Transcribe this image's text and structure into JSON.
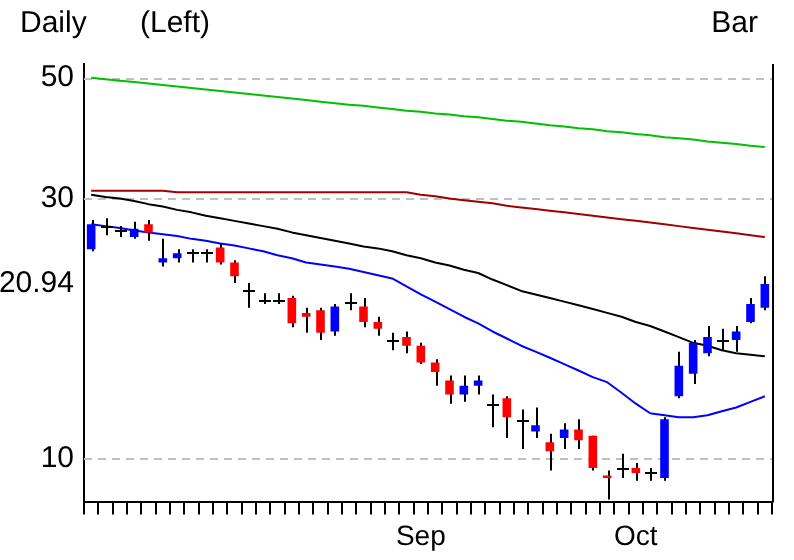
{
  "chart_data": {
    "type": "candlestick",
    "title": "Daily",
    "annotations": [
      "(Left)",
      "Bar"
    ],
    "categories": [
      null,
      null,
      null,
      null,
      null,
      null,
      null,
      null,
      null,
      null,
      null,
      null,
      null,
      null,
      null,
      null,
      null,
      null,
      null,
      null,
      null,
      null,
      null,
      "Sep",
      null,
      null,
      null,
      null,
      null,
      null,
      null,
      null,
      null,
      null,
      null,
      null,
      null,
      null,
      "Oct",
      null,
      null,
      null,
      null,
      null,
      null,
      null,
      null,
      null
    ],
    "ohlc": [
      [
        24.2,
        27.4,
        24.0,
        26.9
      ],
      [
        26.7,
        27.6,
        25.7,
        26.7
      ],
      [
        26.2,
        26.7,
        25.5,
        26.2
      ],
      [
        25.5,
        27.2,
        25.3,
        26.4
      ],
      [
        26.9,
        27.4,
        25.1,
        26.0
      ],
      [
        22.9,
        25.3,
        22.5,
        23.3
      ],
      [
        23.3,
        24.2,
        22.9,
        23.8
      ],
      [
        24.0,
        24.2,
        22.9,
        24.0
      ],
      [
        24.0,
        24.2,
        22.9,
        24.0
      ],
      [
        24.4,
        24.8,
        22.7,
        22.9
      ],
      [
        22.9,
        23.1,
        21.0,
        21.6
      ],
      [
        20.3,
        21.0,
        18.9,
        20.3
      ],
      [
        19.5,
        20.1,
        19.2,
        19.5
      ],
      [
        19.5,
        20.1,
        19.2,
        19.5
      ],
      [
        19.7,
        19.9,
        17.4,
        17.7
      ],
      [
        18.5,
        18.9,
        17.0,
        18.2
      ],
      [
        18.7,
        18.9,
        16.5,
        17.0
      ],
      [
        17.1,
        19.2,
        16.8,
        19.0
      ],
      [
        19.4,
        20.1,
        18.7,
        19.4
      ],
      [
        19.0,
        19.7,
        17.4,
        17.8
      ],
      [
        17.8,
        18.2,
        16.8,
        17.3
      ],
      [
        16.5,
        17.0,
        15.8,
        16.5
      ],
      [
        16.7,
        17.1,
        15.6,
        16.1
      ],
      [
        16.1,
        16.3,
        14.9,
        15.0
      ],
      [
        15.0,
        15.2,
        13.6,
        14.4
      ],
      [
        13.9,
        14.2,
        12.6,
        13.1
      ],
      [
        13.1,
        14.2,
        12.7,
        13.6
      ],
      [
        13.6,
        14.2,
        13.1,
        13.9
      ],
      [
        12.6,
        13.1,
        11.4,
        12.6
      ],
      [
        12.9,
        13.0,
        10.9,
        11.9
      ],
      [
        11.8,
        12.3,
        10.4,
        11.8
      ],
      [
        11.2,
        12.4,
        10.9,
        11.5
      ],
      [
        10.7,
        11.1,
        9.5,
        10.3
      ],
      [
        10.9,
        11.6,
        10.4,
        11.3
      ],
      [
        11.3,
        11.8,
        10.4,
        10.8
      ],
      [
        11.0,
        11.0,
        9.5,
        9.6
      ],
      [
        9.3,
        9.5,
        8.4,
        9.2
      ],
      [
        9.6,
        10.2,
        9.2,
        9.6
      ],
      [
        9.6,
        9.8,
        9.1,
        9.4
      ],
      [
        9.4,
        9.6,
        9.1,
        9.4
      ],
      [
        9.2,
        11.9,
        9.1,
        11.8
      ],
      [
        13.0,
        15.7,
        12.9,
        14.8
      ],
      [
        14.3,
        16.5,
        13.7,
        16.3
      ],
      [
        15.6,
        17.5,
        15.4,
        16.7
      ],
      [
        16.5,
        17.3,
        15.8,
        16.5
      ],
      [
        16.5,
        17.5,
        15.7,
        17.1
      ],
      [
        17.8,
        19.7,
        17.7,
        19.2
      ],
      [
        18.9,
        21.6,
        18.7,
        20.9
      ]
    ],
    "colors": [
      "#0000ff",
      "#000000",
      "#000000",
      "#0000ff",
      "#ff0000",
      "#0000ff",
      "#0000ff",
      "#000000",
      "#000000",
      "#ff0000",
      "#ff0000",
      "#000000",
      "#000000",
      "#000000",
      "#ff0000",
      "#ff0000",
      "#ff0000",
      "#0000ff",
      "#000000",
      "#ff0000",
      "#ff0000",
      "#000000",
      "#ff0000",
      "#ff0000",
      "#ff0000",
      "#ff0000",
      "#0000ff",
      "#0000ff",
      "#000000",
      "#ff0000",
      "#000000",
      "#0000ff",
      "#ff0000",
      "#0000ff",
      "#ff0000",
      "#ff0000",
      "#ff0000",
      "#000000",
      "#ff0000",
      "#000000",
      "#0000ff",
      "#0000ff",
      "#0000ff",
      "#0000ff",
      "#000000",
      "#0000ff",
      "#0000ff",
      "#0000ff"
    ],
    "series": [
      {
        "type": "line",
        "color": "#00c000",
        "values": [
          50,
          49.7,
          49.4,
          49.1,
          48.8,
          48.5,
          48.2,
          47.9,
          47.6,
          47.3,
          47.0,
          46.7,
          46.4,
          46.1,
          45.8,
          45.5,
          45.2,
          44.9,
          44.6,
          44.4,
          44.1,
          43.8,
          43.5,
          43.3,
          43.0,
          42.8,
          42.5,
          42.3,
          42.0,
          41.7,
          41.5,
          41.2,
          40.9,
          40.7,
          40.4,
          40.2,
          39.9,
          39.7,
          39.4,
          39.2,
          38.9,
          38.7,
          38.5,
          38.2,
          38.0,
          37.8,
          37.5,
          37.3
        ]
      },
      {
        "type": "line",
        "color": "#a00000",
        "values": [
          31.0,
          31.0,
          31.0,
          31.0,
          31.0,
          31.0,
          30.8,
          30.8,
          30.8,
          30.8,
          30.8,
          30.8,
          30.8,
          30.8,
          30.8,
          30.8,
          30.8,
          30.8,
          30.8,
          30.8,
          30.8,
          30.8,
          30.8,
          30.5,
          30.3,
          30.0,
          29.8,
          29.6,
          29.4,
          29.1,
          28.9,
          28.7,
          28.5,
          28.3,
          28.1,
          27.9,
          27.7,
          27.5,
          27.3,
          27.1,
          26.9,
          26.7,
          26.5,
          26.3,
          26.1,
          25.9,
          25.7,
          25.5
        ]
      },
      {
        "type": "line",
        "color": "#000000",
        "values": [
          30.5,
          30.2,
          30.0,
          29.7,
          29.3,
          29.0,
          28.6,
          28.3,
          27.9,
          27.6,
          27.3,
          27.0,
          26.7,
          26.4,
          26.0,
          25.7,
          25.4,
          25.1,
          24.8,
          24.5,
          24.3,
          24.0,
          23.6,
          23.3,
          22.9,
          22.6,
          22.2,
          21.9,
          21.3,
          20.8,
          20.3,
          20.0,
          19.7,
          19.4,
          19.1,
          18.8,
          18.5,
          18.2,
          17.8,
          17.5,
          17.1,
          16.7,
          16.3,
          16.1,
          15.8,
          15.6,
          15.5,
          15.4
        ]
      },
      {
        "type": "line",
        "color": "#0000ff",
        "values": [
          26.9,
          26.7,
          26.5,
          26.2,
          26.0,
          25.8,
          25.6,
          25.3,
          25.1,
          24.8,
          24.6,
          24.3,
          24.0,
          23.6,
          23.3,
          22.9,
          22.7,
          22.5,
          22.3,
          22.0,
          21.7,
          21.4,
          20.7,
          20.0,
          19.4,
          18.8,
          18.2,
          17.7,
          17.1,
          16.6,
          16.1,
          15.7,
          15.3,
          14.9,
          14.5,
          14.1,
          13.8,
          13.2,
          12.6,
          12.1,
          12.0,
          11.9,
          11.9,
          12.0,
          12.2,
          12.4,
          12.7,
          13.0
        ]
      }
    ],
    "log": "y",
    "ylim": [
      8.3,
      53
    ],
    "yticks": [
      10,
      20.94,
      30,
      50
    ],
    "ref_lines": [
      {
        "axis": "y",
        "value": 50,
        "color": "#c0c0c0",
        "line_style": "dashed"
      },
      {
        "axis": "y",
        "value": 30,
        "color": "#c0c0c0",
        "line_style": "dashed"
      },
      {
        "axis": "y",
        "value": 10,
        "color": "#c0c0c0",
        "line_style": "dashed"
      }
    ]
  }
}
